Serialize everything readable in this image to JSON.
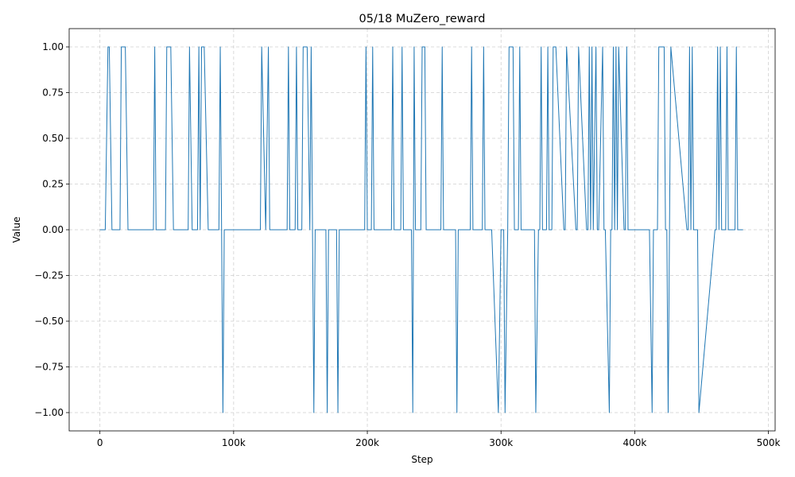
{
  "chart_data": {
    "type": "line",
    "title": "05/18  MuZero_reward",
    "xlabel": "Step",
    "ylabel": "Value",
    "xlim": [
      -23000,
      505000
    ],
    "ylim": [
      -1.1,
      1.1
    ],
    "grid": true,
    "line_color": "#1f77b4",
    "x_ticks": [
      0,
      100000,
      200000,
      300000,
      400000,
      500000
    ],
    "x_tick_labels": [
      "0",
      "100k",
      "200k",
      "300k",
      "400k",
      "500k"
    ],
    "y_ticks": [
      -1.0,
      -0.75,
      -0.5,
      -0.25,
      0.0,
      0.25,
      0.5,
      0.75,
      1.0
    ],
    "y_tick_labels": [
      "−1.00",
      "−0.75",
      "−0.50",
      "−0.25",
      "0.00",
      "0.25",
      "0.50",
      "0.75",
      "1.00"
    ],
    "series": [
      {
        "x": [
          0,
          4000,
          6000,
          7000,
          9000,
          15000,
          16000,
          19000,
          21000,
          40000,
          41000,
          42000,
          49000,
          50000,
          53000,
          55000,
          66000,
          67000,
          69000,
          73000,
          74000,
          75000,
          76000,
          77000,
          78000,
          81000,
          82000,
          89000,
          90000,
          91000,
          92000,
          93000,
          120000,
          121000,
          124000,
          126000,
          127000,
          128000,
          140000,
          141000,
          142000,
          146000,
          147000,
          148000,
          151000,
          152000,
          155000,
          157000,
          158000,
          159000,
          160000,
          161000,
          162000,
          169000,
          170000,
          171000,
          177000,
          178000,
          179000,
          198000,
          199000,
          200000,
          203000,
          204000,
          205000,
          218000,
          219000,
          220000,
          225000,
          226000,
          227000,
          232000,
          233000,
          234000,
          235000,
          236000,
          240000,
          241000,
          243000,
          244000,
          255000,
          256000,
          257000,
          258000,
          266000,
          267000,
          268000,
          277000,
          278000,
          279000,
          286000,
          287000,
          288000,
          289000,
          293000,
          298000,
          300000,
          302000,
          303000,
          305000,
          306000,
          309000,
          310000,
          313000,
          314000,
          315000,
          325000,
          326000,
          328000,
          329000,
          330000,
          331000,
          334000,
          335000,
          336000,
          338000,
          339000,
          341000,
          347000,
          348000,
          349000,
          356000,
          357000,
          358000,
          364000,
          365000,
          366000,
          367000,
          368000,
          369000,
          371000,
          372000,
          373000,
          376000,
          377000,
          378000,
          381000,
          382000,
          383000,
          384000,
          385000,
          386000,
          387000,
          388000,
          392000,
          393000,
          394000,
          395000,
          409000,
          410000,
          411000,
          413000,
          414000,
          417000,
          418000,
          422000,
          423000,
          424000,
          425000,
          426000,
          427000,
          439000,
          440000,
          441000,
          442000,
          443000,
          444000,
          446000,
          447000,
          448000,
          460000,
          461000,
          462000,
          463000,
          464000,
          465000,
          468000,
          469000,
          470000,
          471000,
          475000,
          476000,
          477000,
          481000
        ],
        "y": [
          0,
          0,
          1,
          1,
          0,
          0,
          1,
          1,
          0,
          0,
          1,
          0,
          0,
          1,
          1,
          0,
          0,
          1,
          0,
          0,
          1,
          0,
          1,
          1,
          1,
          0,
          0,
          0,
          1,
          0,
          -1,
          0,
          0,
          1,
          0,
          1,
          0,
          0,
          0,
          1,
          0,
          0,
          1,
          0,
          0,
          1,
          1,
          0,
          1,
          0,
          -1,
          0,
          0,
          0,
          -1,
          0,
          0,
          -1,
          0,
          0,
          1,
          0,
          0,
          1,
          0,
          0,
          1,
          0,
          0,
          1,
          0,
          0,
          0,
          -1,
          1,
          0,
          0,
          1,
          1,
          0,
          0,
          1,
          0,
          0,
          0,
          -1,
          0,
          0,
          1,
          0,
          0,
          1,
          0,
          0,
          0,
          -1,
          0,
          0,
          -1,
          0,
          1,
          1,
          0,
          0,
          1,
          0,
          0,
          -1,
          0,
          0,
          1,
          0,
          0,
          1,
          0,
          0,
          1,
          1,
          0,
          0,
          1,
          0,
          0,
          1,
          0,
          0,
          1,
          0,
          1,
          0,
          1,
          0,
          0,
          1,
          0,
          0,
          -1,
          0,
          0,
          1,
          0,
          1,
          0,
          1,
          0,
          0,
          1,
          0,
          0,
          0,
          0,
          -1,
          0,
          0,
          1,
          1,
          0,
          0,
          -1,
          0,
          1,
          0,
          0,
          1,
          0,
          1,
          0,
          0,
          0,
          -1,
          0,
          0,
          1,
          0,
          1,
          0,
          0,
          1,
          0,
          0,
          0,
          1,
          0,
          0
        ]
      }
    ]
  }
}
